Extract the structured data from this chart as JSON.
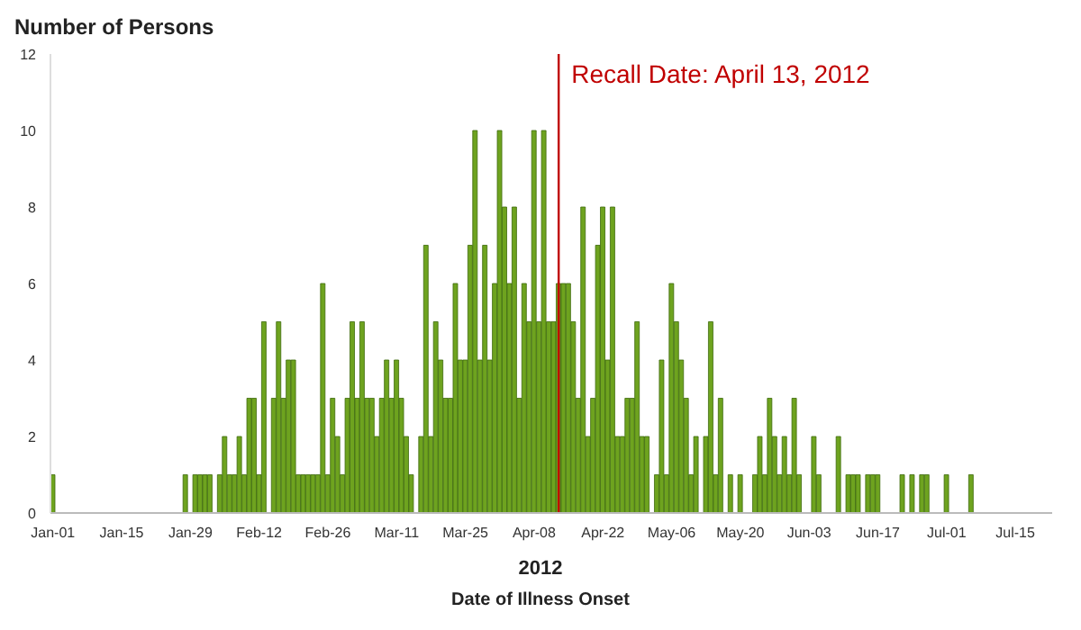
{
  "chart_data": {
    "type": "bar",
    "ylabel": "Number of Persons",
    "xlabel": "Date of Illness Onset",
    "annotations": [
      "2012"
    ],
    "color": "#6ea31f",
    "x": [
      "2012-01-01",
      "2012-01-02",
      "2012-01-03",
      "2012-01-04",
      "2012-01-05",
      "2012-01-06",
      "2012-01-07",
      "2012-01-08",
      "2012-01-09",
      "2012-01-10",
      "2012-01-11",
      "2012-01-12",
      "2012-01-13",
      "2012-01-14",
      "2012-01-15",
      "2012-01-16",
      "2012-01-17",
      "2012-01-18",
      "2012-01-19",
      "2012-01-20",
      "2012-01-21",
      "2012-01-22",
      "2012-01-23",
      "2012-01-24",
      "2012-01-25",
      "2012-01-26",
      "2012-01-27",
      "2012-01-28",
      "2012-01-29",
      "2012-01-30",
      "2012-01-31",
      "2012-02-01",
      "2012-02-02",
      "2012-02-03",
      "2012-02-04",
      "2012-02-05",
      "2012-02-06",
      "2012-02-07",
      "2012-02-08",
      "2012-02-09",
      "2012-02-10",
      "2012-02-11",
      "2012-02-12",
      "2012-02-13",
      "2012-02-14",
      "2012-02-15",
      "2012-02-16",
      "2012-02-17",
      "2012-02-18",
      "2012-02-19",
      "2012-02-20",
      "2012-02-21",
      "2012-02-22",
      "2012-02-23",
      "2012-02-24",
      "2012-02-25",
      "2012-02-26",
      "2012-02-27",
      "2012-02-28",
      "2012-02-29",
      "2012-03-01",
      "2012-03-02",
      "2012-03-03",
      "2012-03-04",
      "2012-03-05",
      "2012-03-06",
      "2012-03-07",
      "2012-03-08",
      "2012-03-09",
      "2012-03-10",
      "2012-03-11",
      "2012-03-12",
      "2012-03-13",
      "2012-03-14",
      "2012-03-15",
      "2012-03-16",
      "2012-03-17",
      "2012-03-18",
      "2012-03-19",
      "2012-03-20",
      "2012-03-21",
      "2012-03-22",
      "2012-03-23",
      "2012-03-24",
      "2012-03-25",
      "2012-03-26",
      "2012-03-27",
      "2012-03-28",
      "2012-03-29",
      "2012-03-30",
      "2012-03-31",
      "2012-04-01",
      "2012-04-02",
      "2012-04-03",
      "2012-04-04",
      "2012-04-05",
      "2012-04-06",
      "2012-04-07",
      "2012-04-08",
      "2012-04-09",
      "2012-04-10",
      "2012-04-11",
      "2012-04-12",
      "2012-04-13",
      "2012-04-14",
      "2012-04-15",
      "2012-04-16",
      "2012-04-17",
      "2012-04-18",
      "2012-04-19",
      "2012-04-20",
      "2012-04-21",
      "2012-04-22",
      "2012-04-23",
      "2012-04-24",
      "2012-04-25",
      "2012-04-26",
      "2012-04-27",
      "2012-04-28",
      "2012-04-29",
      "2012-04-30",
      "2012-05-01",
      "2012-05-02",
      "2012-05-03",
      "2012-05-04",
      "2012-05-05",
      "2012-05-06",
      "2012-05-07",
      "2012-05-08",
      "2012-05-09",
      "2012-05-10",
      "2012-05-11",
      "2012-05-12",
      "2012-05-13",
      "2012-05-14",
      "2012-05-15",
      "2012-05-16",
      "2012-05-17",
      "2012-05-18",
      "2012-05-19",
      "2012-05-20",
      "2012-05-21",
      "2012-05-22",
      "2012-05-23",
      "2012-05-24",
      "2012-05-25",
      "2012-05-26",
      "2012-05-27",
      "2012-05-28",
      "2012-05-29",
      "2012-05-30",
      "2012-05-31",
      "2012-06-01",
      "2012-06-02",
      "2012-06-03",
      "2012-06-04",
      "2012-06-05",
      "2012-06-06",
      "2012-06-07",
      "2012-06-08",
      "2012-06-09",
      "2012-06-10",
      "2012-06-11",
      "2012-06-12",
      "2012-06-13",
      "2012-06-14",
      "2012-06-15",
      "2012-06-16",
      "2012-06-17",
      "2012-06-18",
      "2012-06-19",
      "2012-06-20",
      "2012-06-21",
      "2012-06-22",
      "2012-06-23",
      "2012-06-24",
      "2012-06-25",
      "2012-06-26",
      "2012-06-27",
      "2012-06-28",
      "2012-06-29",
      "2012-06-30",
      "2012-07-01",
      "2012-07-02",
      "2012-07-03",
      "2012-07-04",
      "2012-07-05",
      "2012-07-06"
    ],
    "values": [
      1,
      0,
      0,
      0,
      0,
      0,
      0,
      0,
      0,
      0,
      0,
      0,
      0,
      0,
      0,
      0,
      0,
      0,
      0,
      0,
      0,
      0,
      0,
      0,
      0,
      0,
      0,
      1,
      0,
      1,
      1,
      1,
      1,
      0,
      1,
      2,
      1,
      1,
      2,
      1,
      3,
      3,
      1,
      5,
      0,
      3,
      5,
      3,
      4,
      4,
      1,
      1,
      1,
      1,
      1,
      6,
      1,
      3,
      2,
      1,
      3,
      5,
      3,
      5,
      3,
      3,
      2,
      3,
      4,
      3,
      4,
      3,
      2,
      1,
      0,
      2,
      7,
      2,
      5,
      4,
      3,
      3,
      6,
      4,
      4,
      7,
      10,
      4,
      7,
      4,
      6,
      10,
      8,
      6,
      8,
      3,
      6,
      5,
      10,
      5,
      10,
      5,
      5,
      6,
      6,
      6,
      5,
      3,
      8,
      2,
      3,
      7,
      8,
      4,
      8,
      2,
      2,
      3,
      3,
      5,
      2,
      2,
      0,
      1,
      4,
      1,
      6,
      5,
      4,
      3,
      1,
      2,
      0,
      2,
      5,
      1,
      3,
      0,
      1,
      0,
      1,
      0,
      0,
      1,
      2,
      1,
      3,
      2,
      1,
      2,
      1,
      3,
      1,
      0,
      0,
      2,
      1,
      0,
      0,
      0,
      2,
      0,
      1,
      1,
      1,
      0,
      1,
      1,
      1,
      0,
      0,
      0,
      0,
      1,
      0,
      1,
      0,
      1,
      1,
      0,
      0,
      0,
      1,
      0,
      0,
      0,
      0,
      1
    ],
    "xlim": [
      "2011-12-31T12:00",
      "2012-07-22T12:00"
    ],
    "xticks": [
      {
        "value": "2012-01-01",
        "label": "Jan-01"
      },
      {
        "value": "2012-01-15",
        "label": "Jan-15"
      },
      {
        "value": "2012-01-29",
        "label": "Jan-29"
      },
      {
        "value": "2012-02-12",
        "label": "Feb-12"
      },
      {
        "value": "2012-02-26",
        "label": "Feb-26"
      },
      {
        "value": "2012-03-11",
        "label": "Mar-11"
      },
      {
        "value": "2012-03-25",
        "label": "Mar-25"
      },
      {
        "value": "2012-04-08",
        "label": "Apr-08"
      },
      {
        "value": "2012-04-22",
        "label": "Apr-22"
      },
      {
        "value": "2012-05-06",
        "label": "May-06"
      },
      {
        "value": "2012-05-20",
        "label": "May-20"
      },
      {
        "value": "2012-06-03",
        "label": "Jun-03"
      },
      {
        "value": "2012-06-17",
        "label": "Jun-17"
      },
      {
        "value": "2012-07-01",
        "label": "Jul-01"
      },
      {
        "value": "2012-07-15",
        "label": "Jul-15"
      }
    ],
    "ylim": [
      0,
      12
    ],
    "yticks": [
      0,
      2,
      4,
      6,
      8,
      10,
      12
    ],
    "ref_lines": [
      {
        "axis": "x",
        "value": "2012-04-13",
        "label": "Recall Date: April 13, 2012",
        "color": "#c00000"
      }
    ]
  }
}
